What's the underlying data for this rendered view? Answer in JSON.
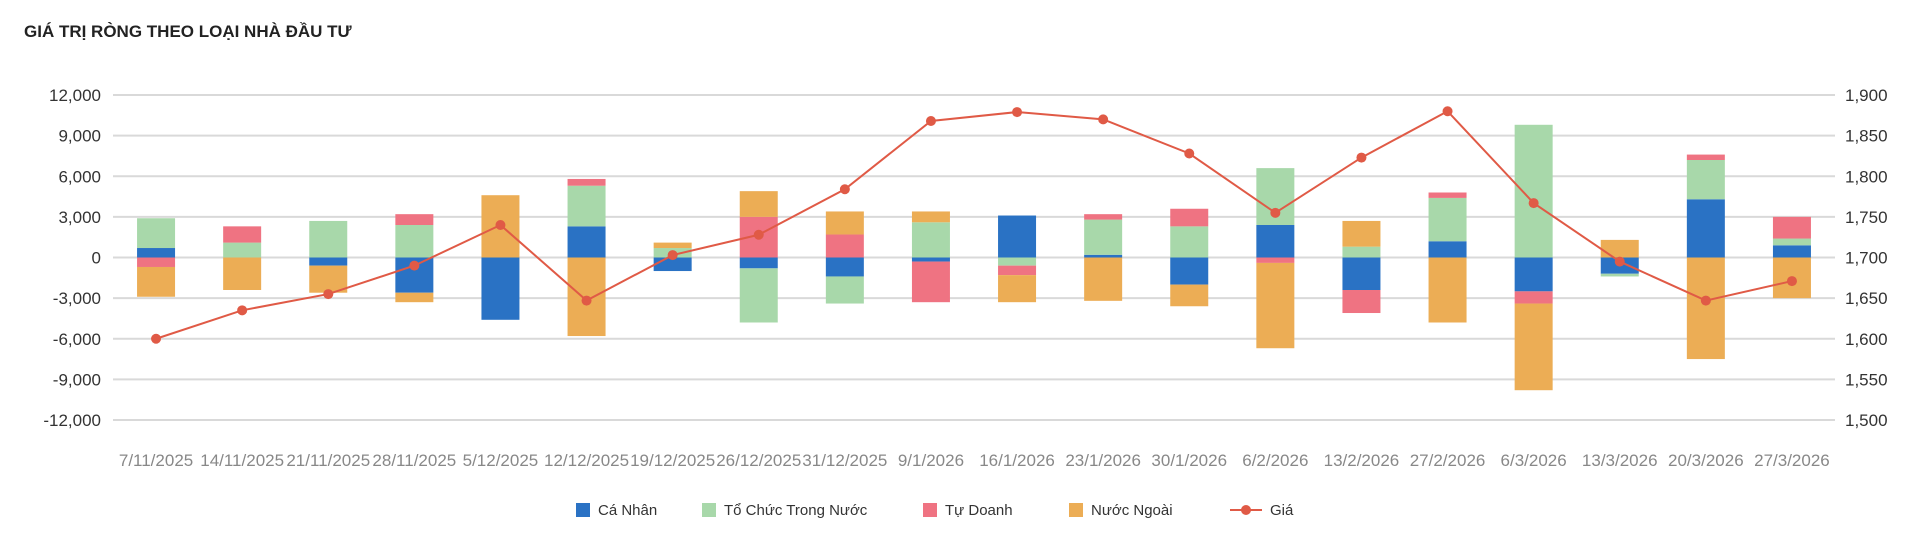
{
  "chart_data": {
    "type": "bar",
    "stacked": true,
    "title": "GIÁ TRỊ RÒNG THEO LOẠI NHÀ ĐẦU TƯ",
    "categories": [
      "7/11/2025",
      "14/11/2025",
      "21/11/2025",
      "28/11/2025",
      "5/12/2025",
      "12/12/2025",
      "19/12/2025",
      "26/12/2025",
      "31/12/2025",
      "9/1/2026",
      "16/1/2026",
      "23/1/2026",
      "30/1/2026",
      "6/2/2026",
      "13/2/2026",
      "27/2/2026",
      "6/3/2026",
      "13/3/2026",
      "20/3/2026",
      "27/3/2026"
    ],
    "y_left": {
      "min": -12000,
      "max": 12000,
      "ticks": [
        "12,000",
        "9,000",
        "6,000",
        "3,000",
        "0",
        "-3,000",
        "-6,000",
        "-9,000",
        "-12,000"
      ]
    },
    "y_right": {
      "min": 1500,
      "max": 1900,
      "ticks": [
        "1,900",
        "1,850",
        "1,800",
        "1,750",
        "1,700",
        "1,650",
        "1,600",
        "1,550",
        "1,500"
      ]
    },
    "series": [
      {
        "name": "Cá Nhân",
        "color": "#2a72c4",
        "values": [
          700,
          0,
          -600,
          -2600,
          -4600,
          2300,
          -1000,
          -800,
          -1400,
          -300,
          3100,
          200,
          -2000,
          2400,
          -2400,
          1200,
          -2500,
          -1200,
          4300,
          900
        ]
      },
      {
        "name": "Tổ Chức Trong Nước",
        "color": "#a8d8aa",
        "values": [
          2200,
          1100,
          2700,
          2400,
          0,
          3000,
          700,
          -4000,
          -2000,
          2600,
          -600,
          2600,
          2300,
          4200,
          800,
          3200,
          9800,
          -200,
          2900,
          500
        ]
      },
      {
        "name": "Tự Doanh",
        "color": "#ef7382",
        "values": [
          -700,
          1200,
          0,
          800,
          0,
          500,
          0,
          3000,
          1700,
          -3000,
          -700,
          400,
          1300,
          -400,
          -1700,
          400,
          -900,
          0,
          400,
          1600
        ]
      },
      {
        "name": "Nước Ngoài",
        "color": "#ecad55",
        "values": [
          -2200,
          -2400,
          -2000,
          -700,
          4600,
          -5800,
          400,
          1900,
          1700,
          800,
          -2000,
          -3200,
          -1600,
          -6300,
          1900,
          -4800,
          -6400,
          1300,
          -7500,
          -3000
        ]
      },
      {
        "name": "Giá",
        "color": "#e05a46",
        "type": "line",
        "axis": "right",
        "values": [
          1600,
          1635,
          1655,
          1690,
          1740,
          1647,
          1703,
          1728,
          1784,
          1868,
          1879,
          1870,
          1828,
          1755,
          1823,
          1880,
          1767,
          1695,
          1647,
          1671
        ]
      }
    ],
    "grid": true,
    "legend": "bottom"
  }
}
